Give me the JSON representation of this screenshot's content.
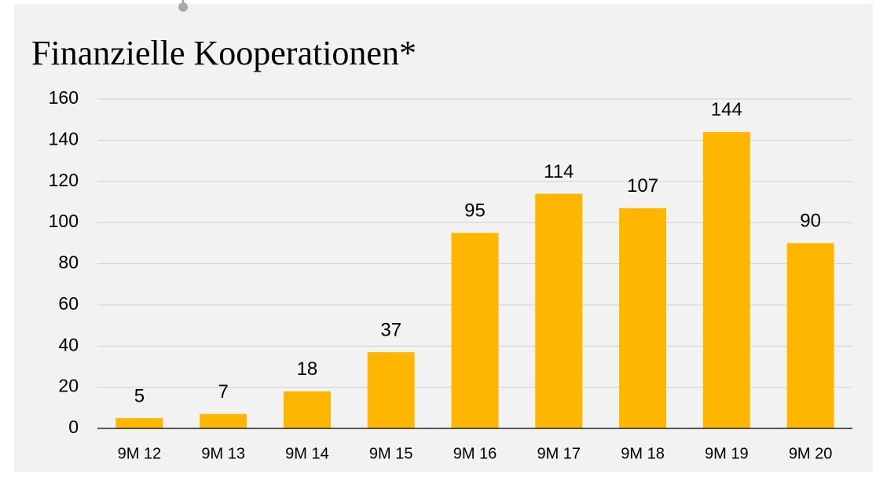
{
  "chart_data": {
    "type": "bar",
    "title": "Finanzielle Kooperationen*",
    "categories": [
      "9M 12",
      "9M 13",
      "9M 14",
      "9M 15",
      "9M 16",
      "9M 17",
      "9M 18",
      "9M 19",
      "9M 20"
    ],
    "values": [
      5,
      7,
      18,
      37,
      95,
      114,
      107,
      144,
      90
    ],
    "color": "#ffb600",
    "ylim": [
      0,
      160
    ],
    "yticks": [
      0,
      20,
      40,
      60,
      80,
      100,
      120,
      140,
      160
    ],
    "grid": true
  }
}
